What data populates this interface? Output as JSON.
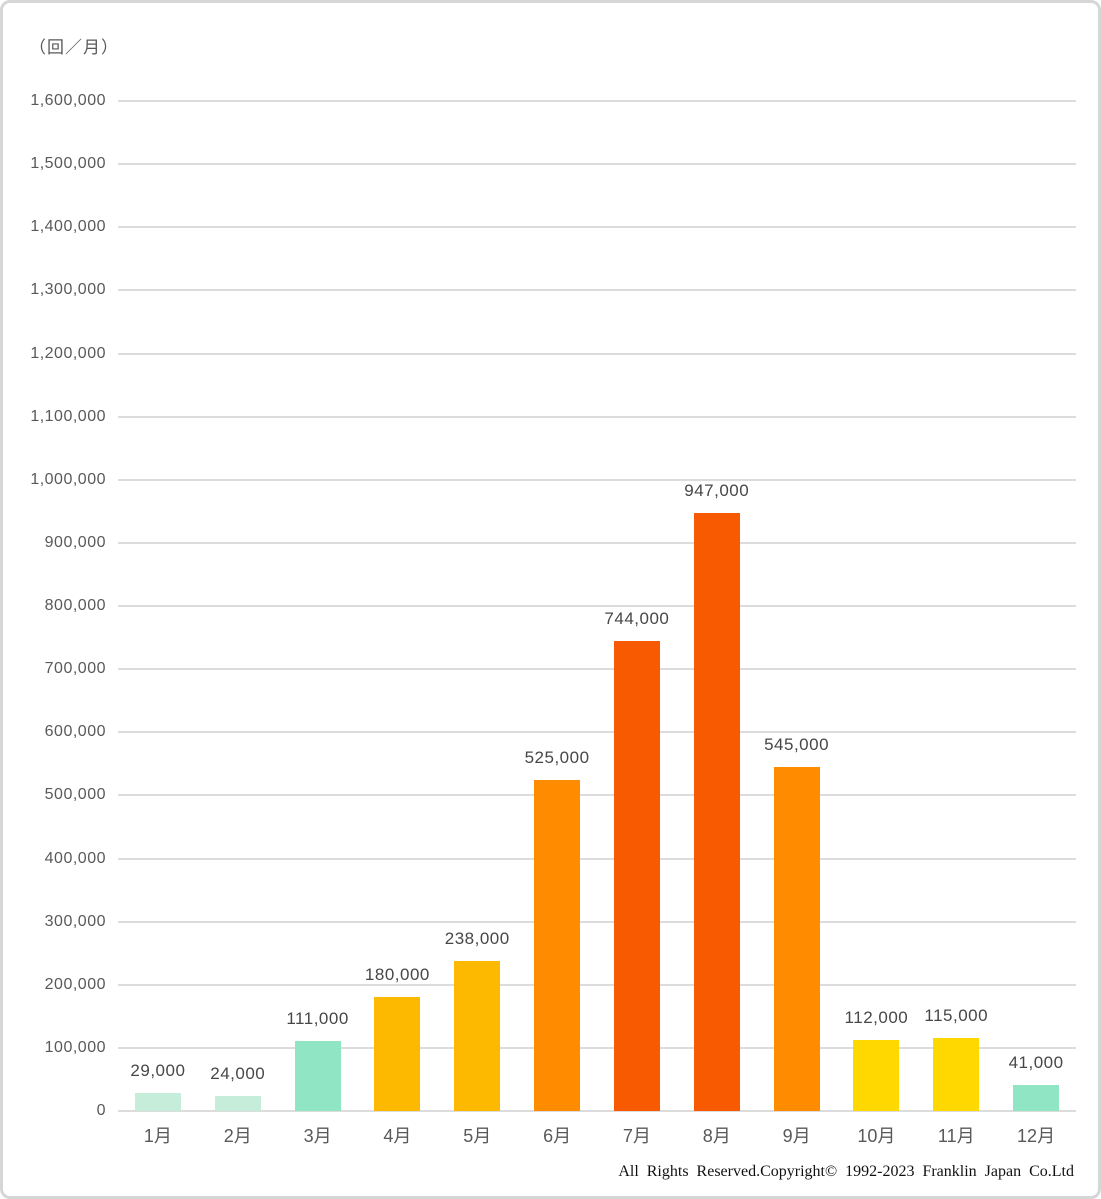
{
  "chart_data": {
    "type": "bar",
    "title": "",
    "unit_label": "（回／月）",
    "xlabel": "",
    "ylabel": "回／月",
    "categories": [
      "1月",
      "2月",
      "3月",
      "4月",
      "5月",
      "6月",
      "7月",
      "8月",
      "9月",
      "10月",
      "11月",
      "12月"
    ],
    "values": [
      29000,
      24000,
      111000,
      180000,
      238000,
      525000,
      744000,
      947000,
      545000,
      112000,
      115000,
      41000
    ],
    "value_labels": [
      "29,000",
      "24,000",
      "111,000",
      "180,000",
      "238,000",
      "525,000",
      "744,000",
      "947,000",
      "545,000",
      "112,000",
      "115,000",
      "41,000"
    ],
    "bar_colors": [
      "#c6edda",
      "#c6edda",
      "#90e5c5",
      "#fdb900",
      "#fdb900",
      "#fe8b00",
      "#f75a00",
      "#f75a00",
      "#fe8b00",
      "#ffd800",
      "#ffd800",
      "#90e5c5"
    ],
    "ylim": [
      0,
      1600000
    ],
    "ytick_step": 100000,
    "ytick_labels": [
      "0",
      "100,000",
      "200,000",
      "300,000",
      "400,000",
      "500,000",
      "600,000",
      "700,000",
      "800,000",
      "900,000",
      "1,000,000",
      "1,100,000",
      "1,200,000",
      "1,300,000",
      "1,400,000",
      "1,500,000",
      "1,600,000"
    ],
    "grid": true,
    "legend": "none"
  },
  "footer": {
    "copyright": "All Rights Reserved.Copyright© 1992-2023 Franklin Japan Co.Ltd"
  },
  "theme": {
    "grid_color": "#dcdcdc",
    "axis_text_color": "#595959",
    "value_text_color": "#474747",
    "border_color": "#d6d6d6",
    "background": "#ffffff",
    "palette": {
      "light_mint": "#c6edda",
      "mint": "#90e5c5",
      "amber": "#fdb900",
      "orange": "#fe8b00",
      "deep_orange": "#f75a00",
      "yellow": "#ffd800"
    }
  }
}
